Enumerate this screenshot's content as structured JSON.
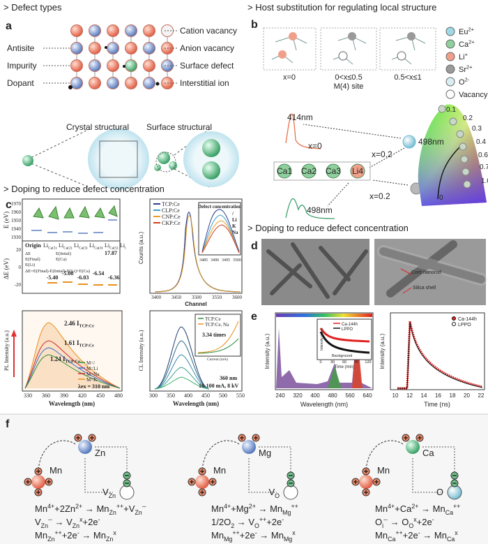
{
  "panel_a": {
    "heading": "> Defect types",
    "letter": "a",
    "left_labels": [
      "Antisite",
      "Impurity",
      "Dopant"
    ],
    "right_labels": [
      "Cation vacancy",
      "Anion vacancy",
      "Surface defect",
      "Interstitial ion"
    ],
    "bottom_labels": [
      "Crystal structural",
      "Surface structural"
    ]
  },
  "panel_b": {
    "heading": "> Host substitution for regulating local structure",
    "letter": "b",
    "boxes": [
      [
        "x=0"
      ],
      [
        "0<x≤0.5",
        "M(4) site"
      ],
      [
        "0.5<x≤1"
      ]
    ],
    "legend": [
      {
        "name": [
          [
            "Eu",
            "base"
          ],
          [
            "2+",
            "sup"
          ]
        ],
        "color": "#9fd8e6"
      },
      {
        "name": [
          [
            "Ca",
            "base"
          ],
          [
            "2+",
            "sup"
          ]
        ],
        "color": "#8fcf9c"
      },
      {
        "name": [
          [
            "Li",
            "base"
          ],
          [
            "+",
            "sup"
          ]
        ],
        "color": "#f0a08a"
      },
      {
        "name": [
          [
            "Sr",
            "base"
          ],
          [
            "2+",
            "sup"
          ]
        ],
        "color": "#9a9a9a"
      },
      {
        "name": [
          [
            "O",
            "base"
          ],
          [
            "2-",
            "sup"
          ]
        ],
        "color": "#d8eef2"
      },
      {
        "name": "Vacancy",
        "color": "#ffffff"
      }
    ],
    "wavelengths": [
      "414nm",
      "498nm",
      "498nm"
    ],
    "x_labels": [
      "x=0",
      "x=0.2",
      "x=0.2"
    ],
    "sites": [
      "Ca1",
      "Ca2",
      "Ca3",
      "Li4"
    ],
    "cie_labels": [
      "0",
      "0.1",
      "0.2",
      "0.3",
      "0.4",
      "0.6",
      "0.7",
      "1.0"
    ]
  },
  "panel_c": {
    "heading": "> Doping to reduce defect concentration",
    "letter": "c",
    "energy": {
      "ylabel": "E (eV)",
      "ylabel2": "ΔE (eV)",
      "yticks": [
        1970,
        1960,
        1950,
        1940,
        1930
      ],
      "yticks2": [
        20,
        0,
        -20
      ],
      "origin": "Origin",
      "sites": [
        [
          [
            "Li",
            "base"
          ],
          [
            "Ca(1)",
            "sub"
          ]
        ],
        [
          [
            "Li",
            "base"
          ],
          [
            "Ca(2)",
            "sub"
          ]
        ],
        [
          [
            "Li",
            "base"
          ],
          [
            "Ca(3)",
            "sub"
          ]
        ],
        [
          [
            "Li",
            "base"
          ],
          [
            "Ca(4)",
            "sub"
          ]
        ],
        [
          [
            "Li",
            "base"
          ],
          [
            "Ca(5)",
            "sub"
          ]
        ],
        [
          [
            "Li",
            "base"
          ],
          [
            "i",
            "sub"
          ]
        ]
      ],
      "li_i_value": "17.87",
      "delta_values": [
        "-5.40",
        "-5.08",
        "-6.03",
        "-6.54",
        "-6.36"
      ],
      "legend": [
        "ΔE",
        "E(Final)",
        "E(Li)",
        "E(Intial)",
        "E(Ca)"
      ],
      "formula": "ΔE=E(Final)-E(Intial)-E(Li)+E(Ca)"
    },
    "counts": {
      "ylabel": "Counts (a.u.)",
      "xlabel": "Channel",
      "xticks": [
        3400,
        3450,
        3500,
        3550,
        3600
      ],
      "legend": [
        {
          "name": "TCP:Ce",
          "color": "#2c3e8f"
        },
        {
          "name": "CLP:Ce",
          "color": "#3aa0c8"
        },
        {
          "name": "CNP:Ce",
          "color": "#e8a020"
        },
        {
          "name": "CKP:Ce",
          "color": "#d04020"
        }
      ],
      "inset_title": "Defect concentration",
      "inset_xticks": [
        3485,
        3490,
        3495,
        3500
      ],
      "inset_labels": [
        "/",
        "Li",
        "K",
        "Na"
      ]
    },
    "pl": {
      "ylabel": "PL Intensity (a.u.)",
      "xlabel": "Wavelength (nm)",
      "xticks": [
        330,
        360,
        390,
        420,
        450,
        480
      ],
      "annotations": [
        [
          [
            "2.46 I",
            "base"
          ],
          [
            "TCP:Ce",
            "sub"
          ]
        ],
        [
          [
            "1.61 I",
            "base"
          ],
          [
            "TCP:Ce",
            "sub"
          ]
        ],
        [
          [
            "1.24 I",
            "base"
          ],
          [
            "TCP:Ce",
            "sub"
          ]
        ]
      ],
      "legend": [
        {
          "name": "M=/",
          "color": "#2c8f3a"
        },
        {
          "name": "M=Li",
          "color": "#3a6fd0"
        },
        {
          "name": "M=Na",
          "color": "#d02a2a"
        },
        {
          "name": "M=K",
          "color": "#e89020"
        }
      ],
      "excitation": "λex = 310 nm"
    },
    "cl": {
      "ylabel": "CL Intensity (a.u.)",
      "xlabel": "Wavelength (nm)",
      "xticks": [
        300,
        350,
        400,
        450,
        500,
        550
      ],
      "inset_legend": [
        "TCP:Ce",
        "TCP:Ce, Na"
      ],
      "inset_note": "3.34 times",
      "inset_xlabel": "Current (mA)",
      "notes": [
        "360 nm",
        "10-100 mA, 8 kV"
      ]
    }
  },
  "panel_d": {
    "heading": "> Doping to reduce defect concentration",
    "letter": "d",
    "labels": [
      "Core nanorod",
      "Silica shell"
    ]
  },
  "panel_e": {
    "letter": "e",
    "spectrum": {
      "ylabel": "Intensity (a.u.)",
      "xlabel": "Wavelength (nm)",
      "xticks": [
        240,
        320,
        400,
        480,
        560,
        640
      ],
      "inset_legend": [
        "Ca-144h",
        "LPPO"
      ],
      "inset_ylabel": "Intensity (a.u.)",
      "inset_xlabel": "Time (min)",
      "inset_xticks": [
        0,
        30,
        60,
        90,
        120
      ],
      "inset_note": "Background"
    },
    "decay": {
      "ylabel": "Intensity (a.u.)",
      "xlabel": "Time (ns)",
      "xticks": [
        10,
        12,
        14,
        16,
        18,
        20,
        22
      ],
      "legend": [
        "Ca-144h",
        "LPPO"
      ]
    }
  },
  "panel_f": {
    "letter": "f",
    "dopant": "Mn",
    "schemes": [
      {
        "host": "Zn",
        "vacancy": [
          [
            "V",
            "base"
          ],
          [
            "Zn",
            "sub"
          ]
        ],
        "equations": [
          [
            [
              "Mn",
              "base"
            ],
            [
              "4+",
              "sup"
            ],
            [
              "+2Zn",
              "base"
            ],
            [
              "2+",
              "sup"
            ],
            [
              " → Mn",
              "base"
            ],
            [
              "Zn",
              "sub"
            ],
            [
              "++",
              "sup"
            ],
            [
              "+V",
              "base"
            ],
            [
              "Zn",
              "sub"
            ],
            [
              "--",
              "sup"
            ]
          ],
          [
            [
              "V",
              "base"
            ],
            [
              "Zn",
              "sub"
            ],
            [
              "--",
              "sup"
            ],
            [
              " → V",
              "base"
            ],
            [
              "Zn",
              "sub"
            ],
            [
              "x",
              "sup"
            ],
            [
              "+2e",
              "base"
            ],
            [
              "-",
              "sup"
            ]
          ],
          [
            [
              "Mn",
              "base"
            ],
            [
              "Zn",
              "sub"
            ],
            [
              "++",
              "sup"
            ],
            [
              "+2e",
              "base"
            ],
            [
              "-",
              "sup"
            ],
            [
              " → Mn",
              "base"
            ],
            [
              "Zn",
              "sub"
            ],
            [
              "x",
              "sup"
            ]
          ]
        ]
      },
      {
        "host": "Mg",
        "vacancy": [
          [
            "V",
            "base"
          ],
          [
            "O",
            "sub"
          ]
        ],
        "equations": [
          [
            [
              "Mn",
              "base"
            ],
            [
              "4+",
              "sup"
            ],
            [
              "+Mg",
              "base"
            ],
            [
              "2+",
              "sup"
            ],
            [
              " → Mn",
              "base"
            ],
            [
              "Mg",
              "sub"
            ],
            [
              "++",
              "sup"
            ]
          ],
          [
            [
              "1/2O",
              "base"
            ],
            [
              "2",
              "sub"
            ],
            [
              " → V",
              "base"
            ],
            [
              "O",
              "sub"
            ],
            [
              "++",
              "sup"
            ],
            [
              "+2e",
              "base"
            ],
            [
              "-",
              "sup"
            ]
          ],
          [
            [
              "Mn",
              "base"
            ],
            [
              "Mg",
              "sub"
            ],
            [
              "++",
              "sup"
            ],
            [
              "+2e",
              "base"
            ],
            [
              "-",
              "sup"
            ],
            [
              " → Mn",
              "base"
            ],
            [
              "Mg",
              "sub"
            ],
            [
              "x",
              "sup"
            ]
          ]
        ]
      },
      {
        "host": "Ca",
        "vacancy": "O",
        "equations": [
          [
            [
              "Mn",
              "base"
            ],
            [
              "4+",
              "sup"
            ],
            [
              "+Ca",
              "base"
            ],
            [
              "2+",
              "sup"
            ],
            [
              " → Mn",
              "base"
            ],
            [
              "Ca",
              "sub"
            ],
            [
              "++",
              "sup"
            ]
          ],
          [
            [
              "O",
              "base"
            ],
            [
              "i",
              "sub"
            ],
            [
              "--",
              "sup"
            ],
            [
              " → O",
              "base"
            ],
            [
              "O",
              "sub"
            ],
            [
              "x",
              "sup"
            ],
            [
              "+2e",
              "base"
            ],
            [
              "-",
              "sup"
            ]
          ],
          [
            [
              "Mn",
              "base"
            ],
            [
              "Ca",
              "sub"
            ],
            [
              "++",
              "sup"
            ],
            [
              "+2e",
              "base"
            ],
            [
              "-",
              "sup"
            ],
            [
              " → Mn",
              "base"
            ],
            [
              "Ca",
              "sub"
            ],
            [
              "x",
              "sup"
            ]
          ]
        ]
      }
    ]
  }
}
